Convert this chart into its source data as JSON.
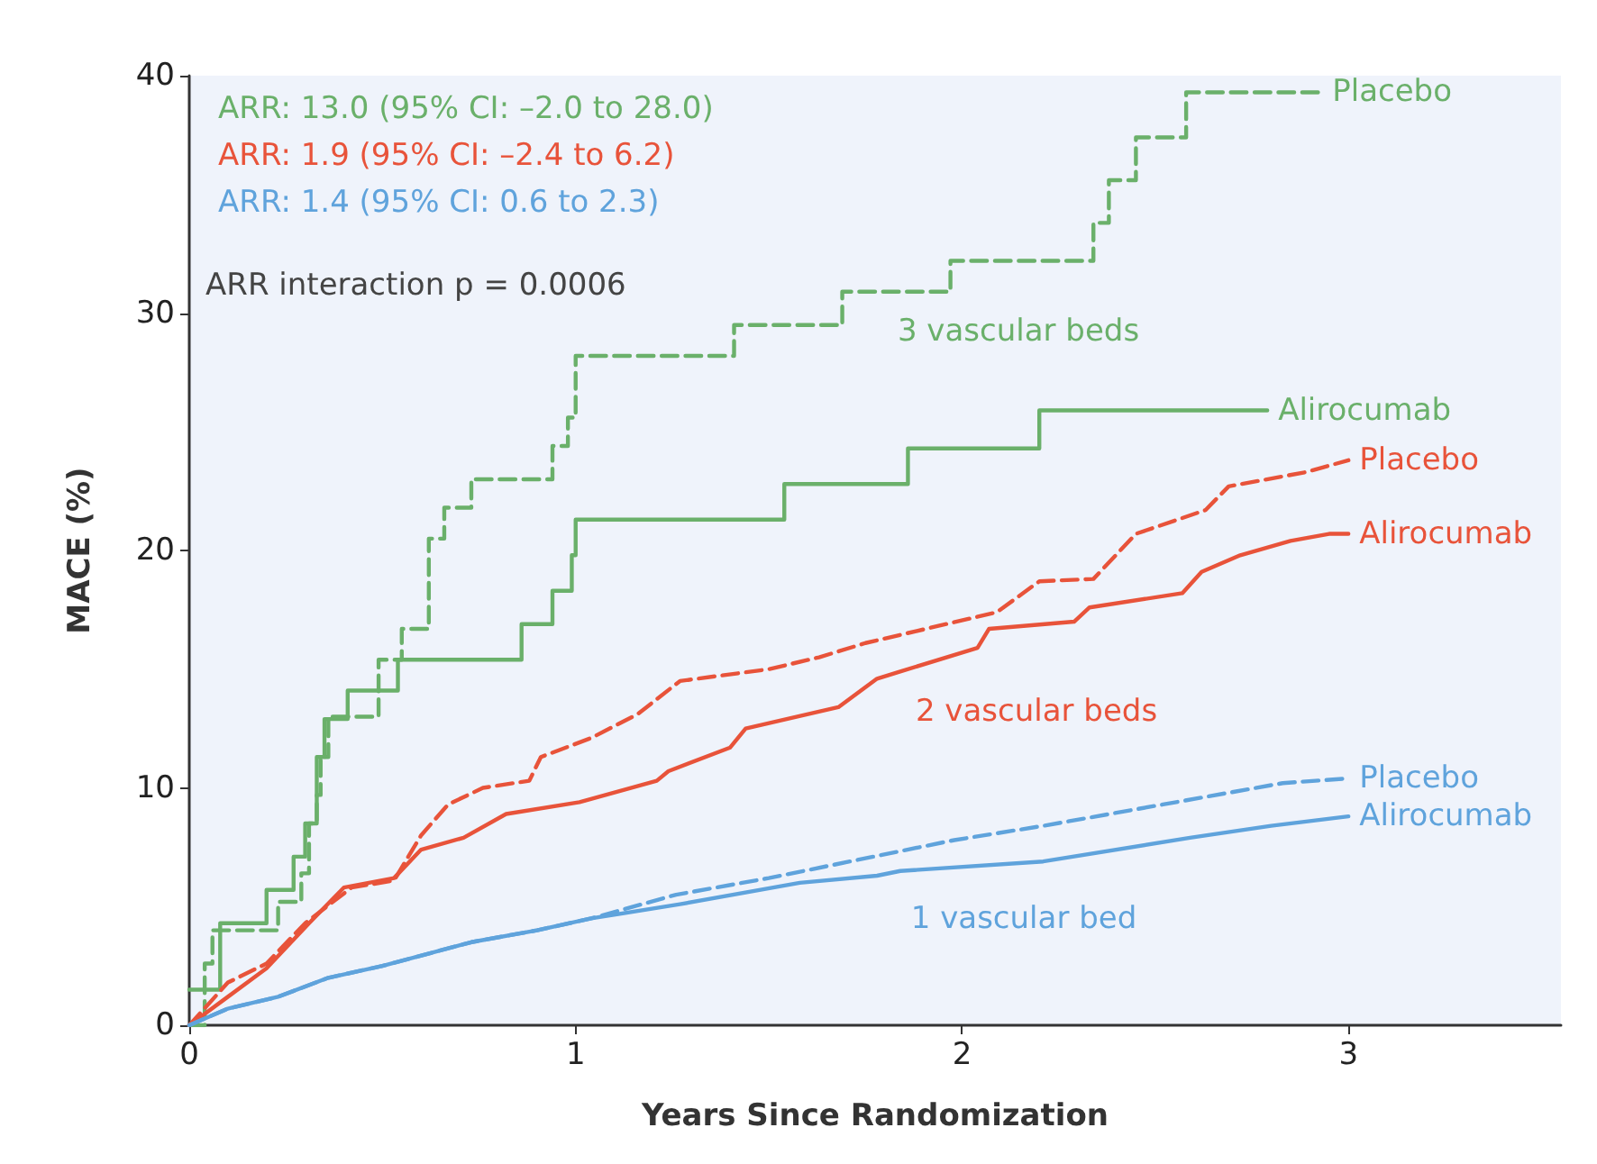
{
  "chart_data": {
    "type": "line",
    "xlabel": "Years Since Randomization",
    "ylabel": "MACE (%)",
    "xlim": [
      0,
      3.55
    ],
    "xticks": [
      0,
      1,
      2,
      3
    ],
    "ylim": [
      0,
      40
    ],
    "yticks": [
      0,
      10,
      20,
      30,
      40
    ],
    "grid": false,
    "legend": false,
    "marker": "none",
    "annotations": [
      "ARR: 13.0 (95% CI: –2.0 to 28.0)",
      "ARR: 1.9 (95% CI: –2.4 to 6.2)",
      "ARR: 1.4 (95% CI: 0.6 to 2.3)",
      "ARR interaction p = 0.0006",
      "3 vascular beds",
      "2 vascular beds",
      "1 vascular bed"
    ],
    "series": [
      {
        "name": "Placebo",
        "type": "step",
        "color": "#6ab06a",
        "line_style": "dashed",
        "x": [
          0,
          0.04,
          0.06,
          0.23,
          0.29,
          0.31,
          0.33,
          0.34,
          0.36,
          0.37,
          0.49,
          0.55,
          0.62,
          0.66,
          0.73,
          0.94,
          0.98,
          1.0,
          1.41,
          1.69,
          1.97,
          2.34,
          2.38,
          2.45,
          2.58,
          2.93
        ],
        "values": [
          0,
          2.6,
          4,
          5.2,
          6.4,
          8.5,
          9.7,
          11.3,
          12.9,
          13,
          15.4,
          16.7,
          20.5,
          21.8,
          23,
          24.4,
          25.6,
          28.2,
          29.5,
          30.9,
          32.2,
          33.8,
          35.6,
          37.4,
          39.3,
          39.3
        ]
      },
      {
        "name": "Alirocumab",
        "type": "step",
        "color": "#6ab06a",
        "line_style": "solid",
        "x": [
          0,
          0.08,
          0.2,
          0.27,
          0.3,
          0.33,
          0.35,
          0.41,
          0.54,
          0.86,
          0.94,
          0.99,
          1.0,
          1.54,
          1.86,
          2.2,
          2.79
        ],
        "values": [
          1.5,
          4.3,
          5.7,
          7.1,
          8.5,
          11.3,
          12.9,
          14.1,
          15.4,
          16.9,
          18.3,
          19.8,
          21.3,
          22.8,
          24.3,
          25.9,
          25.9
        ]
      },
      {
        "name": "Placebo",
        "color": "#e8533a",
        "line_style": "dashed",
        "x": [
          0,
          0.1,
          0.2,
          0.3,
          0.42,
          0.53,
          0.6,
          0.67,
          0.76,
          0.88,
          0.91,
          1.04,
          1.16,
          1.27,
          1.5,
          1.63,
          1.75,
          2.09,
          2.2,
          2.34,
          2.45,
          2.63,
          2.69,
          2.89,
          3.0
        ],
        "values": [
          0,
          1.8,
          2.6,
          4.3,
          5.8,
          6.1,
          8,
          9.3,
          10,
          10.3,
          11.3,
          12.1,
          13.1,
          14.5,
          15,
          15.5,
          16.1,
          17.4,
          18.7,
          18.8,
          20.7,
          21.7,
          22.7,
          23.3,
          23.8
        ]
      },
      {
        "name": "Alirocumab",
        "color": "#e8533a",
        "line_style": "solid",
        "x": [
          0,
          0.1,
          0.2,
          0.31,
          0.4,
          0.53,
          0.6,
          0.71,
          0.82,
          1.01,
          1.21,
          1.24,
          1.4,
          1.44,
          1.68,
          1.78,
          1.84,
          2.04,
          2.07,
          2.29,
          2.33,
          2.57,
          2.62,
          2.72,
          2.85,
          2.95,
          3.0
        ],
        "values": [
          0,
          1.2,
          2.4,
          4.3,
          5.8,
          6.2,
          7.4,
          7.9,
          8.9,
          9.4,
          10.3,
          10.7,
          11.7,
          12.5,
          13.4,
          14.6,
          14.9,
          15.9,
          16.7,
          17,
          17.6,
          18.2,
          19.1,
          19.8,
          20.4,
          20.7,
          20.7
        ]
      },
      {
        "name": "Placebo",
        "color": "#5fa3dc",
        "line_style": "dashed",
        "x": [
          0,
          0.1,
          0.23,
          0.36,
          0.5,
          0.73,
          0.9,
          1.04,
          1.26,
          1.5,
          1.77,
          1.98,
          2.21,
          2.52,
          2.83,
          3.0
        ],
        "values": [
          0,
          0.7,
          1.2,
          2,
          2.5,
          3.5,
          4,
          4.5,
          5.5,
          6.2,
          7.1,
          7.8,
          8.4,
          9.3,
          10.2,
          10.4
        ]
      },
      {
        "name": "Alirocumab",
        "color": "#5fa3dc",
        "line_style": "solid",
        "x": [
          0,
          0.1,
          0.23,
          0.36,
          0.5,
          0.73,
          0.9,
          1.04,
          1.27,
          1.58,
          1.78,
          1.84,
          2.21,
          2.59,
          2.8,
          3.0
        ],
        "values": [
          0,
          0.7,
          1.2,
          2,
          2.5,
          3.5,
          4,
          4.5,
          5.1,
          6,
          6.3,
          6.5,
          6.9,
          7.9,
          8.4,
          8.8
        ]
      }
    ]
  }
}
